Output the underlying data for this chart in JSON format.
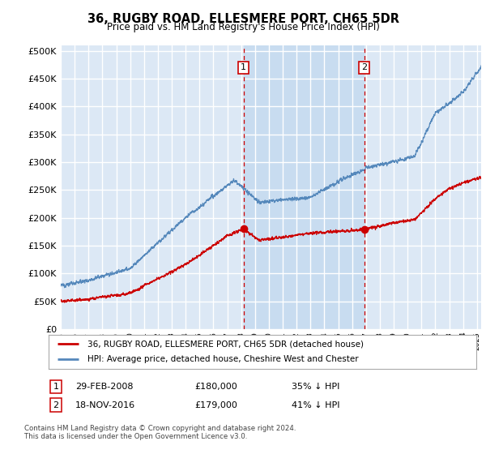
{
  "title": "36, RUGBY ROAD, ELLESMERE PORT, CH65 5DR",
  "subtitle": "Price paid vs. HM Land Registry's House Price Index (HPI)",
  "footnote": "Contains HM Land Registry data © Crown copyright and database right 2024.\nThis data is licensed under the Open Government Licence v3.0.",
  "legend_line1": "36, RUGBY ROAD, ELLESMERE PORT, CH65 5DR (detached house)",
  "legend_line2": "HPI: Average price, detached house, Cheshire West and Chester",
  "transaction1_label": "1",
  "transaction1_date": "29-FEB-2008",
  "transaction1_price": "£180,000",
  "transaction1_hpi": "35% ↓ HPI",
  "transaction2_label": "2",
  "transaction2_date": "18-NOV-2016",
  "transaction2_price": "£179,000",
  "transaction2_hpi": "41% ↓ HPI",
  "sale1_year": 2008.17,
  "sale1_price": 180000,
  "sale2_year": 2016.88,
  "sale2_price": 179000,
  "plot_bg": "#dce8f5",
  "shaded_bg": "#c8dcf0",
  "grid_color": "#ffffff",
  "hpi_color": "#5588bb",
  "sale_color": "#cc0000",
  "vline_color": "#cc0000",
  "ylim": [
    0,
    510000
  ],
  "xlim": [
    1995,
    2025.3
  ],
  "yticks": [
    0,
    50000,
    100000,
    150000,
    200000,
    250000,
    300000,
    350000,
    400000,
    450000,
    500000
  ]
}
